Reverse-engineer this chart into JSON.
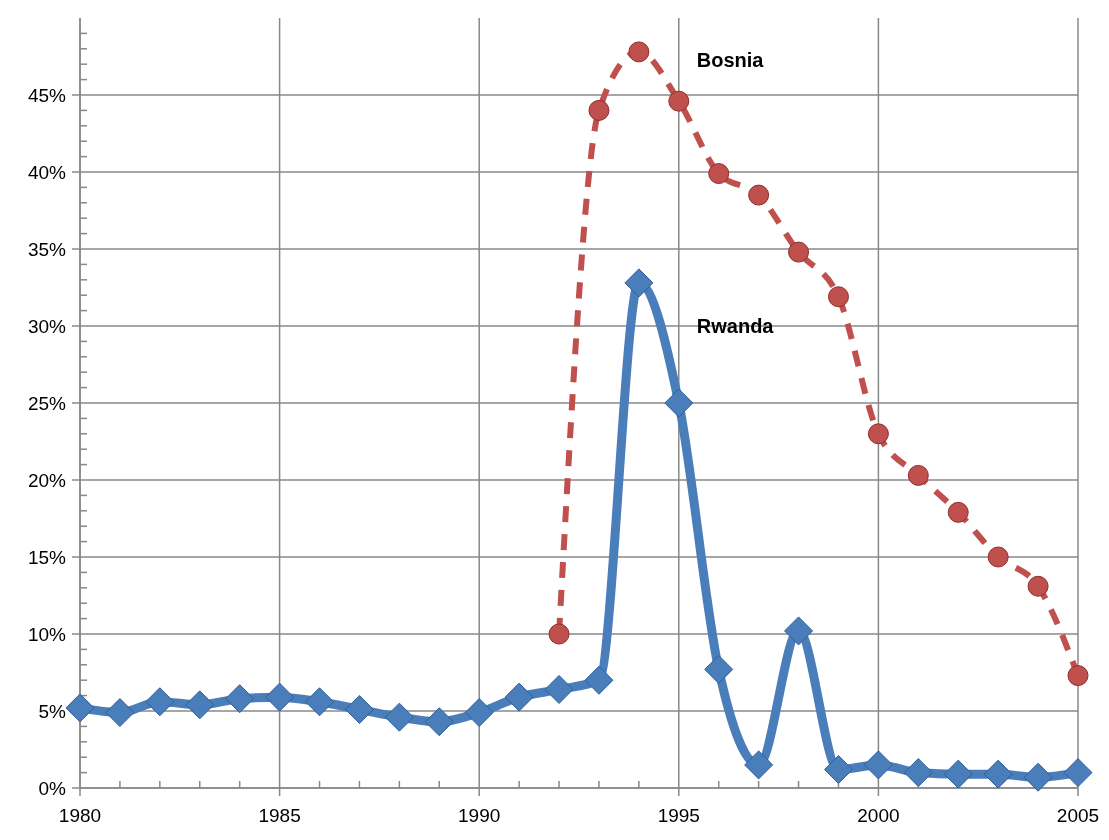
{
  "chart_data": {
    "type": "line",
    "xlim": [
      1980,
      2005
    ],
    "xticks": [
      1980,
      {
        "value": 1981,
        "label": null
      },
      {
        "value": 1982,
        "label": null
      },
      {
        "value": 1983,
        "label": null
      },
      {
        "value": 1984,
        "label": null
      },
      1985,
      {
        "value": 1986,
        "label": null
      },
      {
        "value": 1987,
        "label": null
      },
      {
        "value": 1988,
        "label": null
      },
      {
        "value": 1989,
        "label": null
      },
      1990,
      {
        "value": 1991,
        "label": null
      },
      {
        "value": 1992,
        "label": null
      },
      {
        "value": 1993,
        "label": null
      },
      {
        "value": 1994,
        "label": null
      },
      1995,
      {
        "value": 1996,
        "label": null
      },
      {
        "value": 1997,
        "label": null
      },
      {
        "value": 1998,
        "label": null
      },
      {
        "value": 1999,
        "label": null
      },
      2000,
      {
        "value": 2001,
        "label": null
      },
      {
        "value": 2002,
        "label": null
      },
      {
        "value": 2003,
        "label": null
      },
      {
        "value": 2004,
        "label": null
      },
      2005
    ],
    "ylim": [
      0,
      50
    ],
    "yticks": [
      {
        "value": 0,
        "label": "0%"
      },
      {
        "value": 1,
        "label": null
      },
      {
        "value": 2,
        "label": null
      },
      {
        "value": 3,
        "label": null
      },
      {
        "value": 4,
        "label": null
      },
      {
        "value": 5,
        "label": "5%"
      },
      {
        "value": 6,
        "label": null
      },
      {
        "value": 7,
        "label": null
      },
      {
        "value": 8,
        "label": null
      },
      {
        "value": 9,
        "label": null
      },
      {
        "value": 10,
        "label": "10%"
      },
      {
        "value": 11,
        "label": null
      },
      {
        "value": 12,
        "label": null
      },
      {
        "value": 13,
        "label": null
      },
      {
        "value": 14,
        "label": null
      },
      {
        "value": 15,
        "label": "15%"
      },
      {
        "value": 16,
        "label": null
      },
      {
        "value": 17,
        "label": null
      },
      {
        "value": 18,
        "label": null
      },
      {
        "value": 19,
        "label": null
      },
      {
        "value": 20,
        "label": "20%"
      },
      {
        "value": 21,
        "label": null
      },
      {
        "value": 22,
        "label": null
      },
      {
        "value": 23,
        "label": null
      },
      {
        "value": 24,
        "label": null
      },
      {
        "value": 25,
        "label": "25%"
      },
      {
        "value": 26,
        "label": null
      },
      {
        "value": 27,
        "label": null
      },
      {
        "value": 28,
        "label": null
      },
      {
        "value": 29,
        "label": null
      },
      {
        "value": 30,
        "label": "30%"
      },
      {
        "value": 31,
        "label": null
      },
      {
        "value": 32,
        "label": null
      },
      {
        "value": 33,
        "label": null
      },
      {
        "value": 34,
        "label": null
      },
      {
        "value": 35,
        "label": "35%"
      },
      {
        "value": 36,
        "label": null
      },
      {
        "value": 37,
        "label": null
      },
      {
        "value": 38,
        "label": null
      },
      {
        "value": 39,
        "label": null
      },
      {
        "value": 40,
        "label": "40%"
      },
      {
        "value": 41,
        "label": null
      },
      {
        "value": 42,
        "label": null
      },
      {
        "value": 43,
        "label": null
      },
      {
        "value": 44,
        "label": null
      },
      {
        "value": 45,
        "label": "45%"
      },
      {
        "value": 46,
        "label": null
      },
      {
        "value": 47,
        "label": null
      },
      {
        "value": 48,
        "label": null
      },
      {
        "value": 49,
        "label": null
      }
    ],
    "grid": true,
    "series": [
      {
        "name": "Rwanda",
        "color": "#4a7ebb",
        "marker": "diamond",
        "line_style": "solid",
        "x": [
          1980,
          1981,
          1982,
          1983,
          1984,
          1985,
          1986,
          1987,
          1988,
          1989,
          1990,
          1991,
          1992,
          1993,
          1994,
          1995,
          1996,
          1997,
          1998,
          1999,
          2000,
          2001,
          2002,
          2003,
          2004,
          2005
        ],
        "values": [
          5.2,
          4.9,
          5.6,
          5.4,
          5.8,
          5.9,
          5.6,
          5.1,
          4.6,
          4.3,
          4.9,
          5.9,
          6.4,
          7.0,
          32.8,
          25.0,
          7.7,
          1.5,
          10.2,
          1.2,
          1.5,
          1.0,
          0.9,
          0.9,
          0.7,
          1.0
        ]
      },
      {
        "name": "Bosnia",
        "color": "#c0504d",
        "marker": "circle",
        "line_style": "dashed",
        "x": [
          1992,
          1993,
          1994,
          1995,
          1996,
          1997,
          1998,
          1999,
          2000,
          2001,
          2002,
          2003,
          2004,
          2005
        ],
        "values": [
          10.0,
          44.0,
          47.8,
          44.6,
          39.9,
          38.5,
          34.8,
          31.9,
          23.0,
          20.3,
          17.9,
          15.0,
          13.1,
          7.3
        ]
      }
    ]
  }
}
